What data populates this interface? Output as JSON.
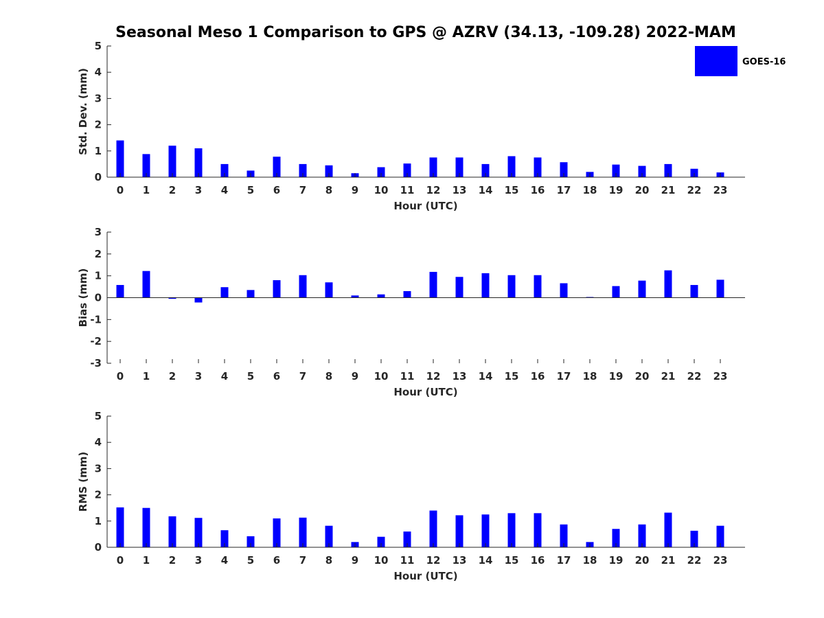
{
  "title": "Seasonal Meso 1 Comparison to GPS @ AZRV (34.13, -109.28) 2022-MAM",
  "legend": {
    "label": "GOES-16",
    "color": "#0000ff",
    "placement": "top-right"
  },
  "colors": {
    "bar": "#0000ff",
    "axis": "#262626",
    "title": "#000000"
  },
  "chart_data": [
    {
      "type": "bar",
      "title": "Seasonal Meso 1 Comparison to GPS @ AZRV (34.13, -109.28) 2022-MAM",
      "xlabel": "Hour (UTC)",
      "ylabel": "Std. Dev. (mm)",
      "ylim": [
        0,
        5
      ],
      "yticks": [
        0,
        1,
        2,
        3,
        4,
        5
      ],
      "grid": false,
      "categories": [
        "0",
        "1",
        "2",
        "3",
        "4",
        "5",
        "6",
        "7",
        "8",
        "9",
        "10",
        "11",
        "12",
        "13",
        "14",
        "15",
        "16",
        "17",
        "18",
        "19",
        "20",
        "21",
        "22",
        "23"
      ],
      "series": [
        {
          "name": "GOES-16",
          "values": [
            1.4,
            0.88,
            1.2,
            1.1,
            0.5,
            0.25,
            0.78,
            0.5,
            0.45,
            0.15,
            0.38,
            0.52,
            0.75,
            0.75,
            0.5,
            0.8,
            0.75,
            0.57,
            0.2,
            0.48,
            0.43,
            0.5,
            0.32,
            0.18
          ]
        }
      ]
    },
    {
      "type": "bar",
      "xlabel": "Hour (UTC)",
      "ylabel": "Bias (mm)",
      "ylim": [
        -3,
        3
      ],
      "yticks": [
        -3,
        -2,
        -1,
        0,
        1,
        2,
        3
      ],
      "grid": false,
      "categories": [
        "0",
        "1",
        "2",
        "3",
        "4",
        "5",
        "6",
        "7",
        "8",
        "9",
        "10",
        "11",
        "12",
        "13",
        "14",
        "15",
        "16",
        "17",
        "18",
        "19",
        "20",
        "21",
        "22",
        "23"
      ],
      "series": [
        {
          "name": "GOES-16",
          "values": [
            0.58,
            1.22,
            -0.05,
            -0.22,
            0.48,
            0.35,
            0.8,
            1.03,
            0.7,
            0.1,
            0.15,
            0.3,
            1.18,
            0.95,
            1.12,
            1.03,
            1.03,
            0.66,
            0.03,
            0.53,
            0.78,
            1.25,
            0.58,
            0.82
          ]
        }
      ]
    },
    {
      "type": "bar",
      "xlabel": "Hour (UTC)",
      "ylabel": "RMS (mm)",
      "ylim": [
        0,
        5
      ],
      "yticks": [
        0,
        1,
        2,
        3,
        4,
        5
      ],
      "grid": false,
      "categories": [
        "0",
        "1",
        "2",
        "3",
        "4",
        "5",
        "6",
        "7",
        "8",
        "9",
        "10",
        "11",
        "12",
        "13",
        "14",
        "15",
        "16",
        "17",
        "18",
        "19",
        "20",
        "21",
        "22",
        "23"
      ],
      "series": [
        {
          "name": "GOES-16",
          "values": [
            1.52,
            1.5,
            1.18,
            1.12,
            0.65,
            0.42,
            1.1,
            1.13,
            0.82,
            0.2,
            0.4,
            0.6,
            1.4,
            1.22,
            1.25,
            1.3,
            1.3,
            0.87,
            0.2,
            0.7,
            0.87,
            1.32,
            0.63,
            0.82
          ]
        }
      ]
    }
  ]
}
